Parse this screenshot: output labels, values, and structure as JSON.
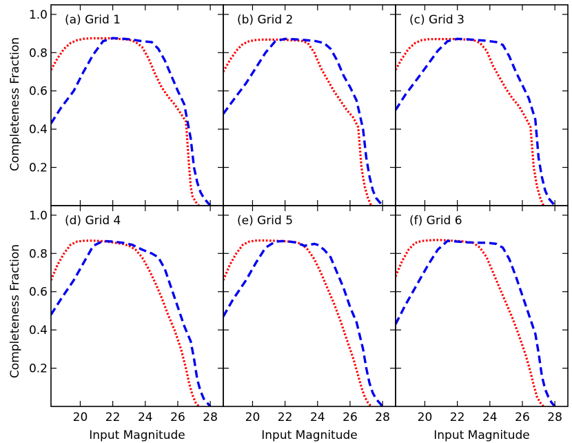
{
  "chart_data": {
    "type": "line",
    "layout": "2x3 grid of panels, shared axes",
    "xlabel": "Input Magnitude",
    "ylabel": "Completeness Fraction",
    "xlim": [
      18.2,
      28.8
    ],
    "ylim": [
      0.0,
      1.05
    ],
    "xticks": [
      20,
      22,
      24,
      26,
      28
    ],
    "yticks": [
      0.2,
      0.4,
      0.6,
      0.8,
      1.0
    ],
    "xtick_labels": [
      "20",
      "22",
      "24",
      "26",
      "28"
    ],
    "ytick_labels": [
      "0.2",
      "0.4",
      "0.6",
      "0.8",
      "1.0"
    ],
    "grid": false,
    "legend": "none",
    "series_styles": [
      {
        "color": "#ff0000",
        "dash": "dotted"
      },
      {
        "color": "#0000ee",
        "dash": "dashed"
      }
    ],
    "panels": [
      {
        "label": "(a) Grid 1",
        "series": [
          {
            "x": [
              18.2,
              18.6,
              19.0,
              19.4,
              19.8,
              20.2,
              20.6,
              21.0,
              21.4,
              21.8,
              22.2,
              22.6,
              23.0,
              23.4,
              23.8,
              24.2,
              24.6,
              25.0,
              25.4,
              25.8,
              26.2,
              26.5,
              26.7,
              26.8,
              26.9,
              27.1,
              27.3
            ],
            "y": [
              0.71,
              0.77,
              0.82,
              0.85,
              0.865,
              0.872,
              0.875,
              0.875,
              0.875,
              0.875,
              0.873,
              0.87,
              0.868,
              0.855,
              0.83,
              0.77,
              0.69,
              0.62,
              0.57,
              0.53,
              0.48,
              0.44,
              0.2,
              0.1,
              0.05,
              0.02,
              0.0
            ]
          },
          {
            "x": [
              18.2,
              18.8,
              19.6,
              20.2,
              20.8,
              21.4,
              22.0,
              22.6,
              23.2,
              23.8,
              24.4,
              24.8,
              25.2,
              25.6,
              26.0,
              26.4,
              26.8,
              27.0,
              27.2,
              27.4,
              27.6,
              27.8,
              28.0
            ],
            "y": [
              0.43,
              0.51,
              0.6,
              0.7,
              0.79,
              0.86,
              0.876,
              0.873,
              0.868,
              0.86,
              0.855,
              0.82,
              0.76,
              0.68,
              0.6,
              0.53,
              0.35,
              0.2,
              0.12,
              0.07,
              0.04,
              0.02,
              0.0
            ]
          }
        ]
      },
      {
        "label": "(b) Grid 2",
        "series": [
          {
            "x": [
              18.2,
              18.6,
              19.0,
              19.4,
              19.8,
              20.2,
              20.6,
              21.0,
              21.4,
              21.8,
              22.2,
              22.6,
              23.0,
              23.4,
              23.8,
              24.2,
              24.6,
              25.0,
              25.4,
              25.8,
              26.2,
              26.5,
              26.7,
              26.9,
              27.1,
              27.3
            ],
            "y": [
              0.7,
              0.76,
              0.81,
              0.845,
              0.86,
              0.866,
              0.868,
              0.868,
              0.868,
              0.868,
              0.866,
              0.864,
              0.862,
              0.85,
              0.8,
              0.72,
              0.66,
              0.6,
              0.55,
              0.5,
              0.46,
              0.41,
              0.2,
              0.1,
              0.04,
              0.0
            ]
          },
          {
            "x": [
              18.2,
              18.8,
              19.6,
              20.2,
              20.8,
              21.4,
              22.0,
              22.6,
              23.2,
              23.8,
              24.4,
              24.8,
              25.2,
              25.6,
              26.0,
              26.4,
              26.8,
              27.0,
              27.2,
              27.4,
              27.6,
              27.8,
              28.0
            ],
            "y": [
              0.48,
              0.55,
              0.64,
              0.72,
              0.8,
              0.86,
              0.872,
              0.87,
              0.866,
              0.862,
              0.85,
              0.82,
              0.76,
              0.68,
              0.62,
              0.55,
              0.4,
              0.25,
              0.15,
              0.08,
              0.04,
              0.02,
              0.0
            ]
          }
        ]
      },
      {
        "label": "(c) Grid 3",
        "series": [
          {
            "x": [
              18.2,
              18.6,
              19.0,
              19.4,
              19.8,
              20.2,
              20.6,
              21.0,
              21.4,
              21.8,
              22.2,
              22.6,
              23.0,
              23.4,
              23.8,
              24.2,
              24.6,
              25.0,
              25.4,
              25.8,
              26.2,
              26.5,
              26.7,
              26.9,
              27.1,
              27.3
            ],
            "y": [
              0.71,
              0.77,
              0.82,
              0.85,
              0.865,
              0.87,
              0.871,
              0.871,
              0.871,
              0.871,
              0.87,
              0.868,
              0.866,
              0.85,
              0.81,
              0.73,
              0.67,
              0.61,
              0.56,
              0.52,
              0.46,
              0.41,
              0.2,
              0.1,
              0.04,
              0.0
            ]
          },
          {
            "x": [
              18.2,
              18.8,
              19.6,
              20.2,
              20.8,
              21.4,
              22.0,
              22.6,
              23.2,
              23.8,
              24.4,
              24.8,
              25.2,
              25.6,
              26.0,
              26.4,
              26.8,
              27.0,
              27.2,
              27.4,
              27.6,
              27.8,
              28.0
            ],
            "y": [
              0.5,
              0.58,
              0.67,
              0.74,
              0.81,
              0.86,
              0.872,
              0.87,
              0.866,
              0.862,
              0.855,
              0.84,
              0.78,
              0.7,
              0.63,
              0.56,
              0.45,
              0.25,
              0.15,
              0.08,
              0.04,
              0.02,
              0.0
            ]
          }
        ]
      },
      {
        "label": "(d) Grid 4",
        "series": [
          {
            "x": [
              18.2,
              18.6,
              19.0,
              19.4,
              19.8,
              20.2,
              20.6,
              21.0,
              21.4,
              21.8,
              22.2,
              22.6,
              23.0,
              23.4,
              23.8,
              24.2,
              24.6,
              25.0,
              25.4,
              25.8,
              26.2,
              26.5,
              26.7,
              26.9,
              27.1,
              27.3
            ],
            "y": [
              0.66,
              0.74,
              0.8,
              0.845,
              0.862,
              0.866,
              0.867,
              0.866,
              0.864,
              0.86,
              0.855,
              0.85,
              0.84,
              0.82,
              0.78,
              0.72,
              0.65,
              0.57,
              0.48,
              0.4,
              0.3,
              0.2,
              0.12,
              0.06,
              0.02,
              0.0
            ]
          },
          {
            "x": [
              18.2,
              18.8,
              19.6,
              20.2,
              20.8,
              21.4,
              22.0,
              22.6,
              23.2,
              23.8,
              24.4,
              24.8,
              25.2,
              25.6,
              26.0,
              26.4,
              26.8,
              27.0,
              27.2,
              27.4,
              27.6,
              27.8,
              28.0
            ],
            "y": [
              0.48,
              0.56,
              0.66,
              0.75,
              0.84,
              0.865,
              0.862,
              0.856,
              0.845,
              0.82,
              0.8,
              0.78,
              0.72,
              0.62,
              0.52,
              0.42,
              0.34,
              0.25,
              0.14,
              0.08,
              0.04,
              0.02,
              0.0
            ]
          }
        ]
      },
      {
        "label": "(e) Grid 5",
        "series": [
          {
            "x": [
              18.2,
              18.6,
              19.0,
              19.4,
              19.8,
              20.2,
              20.6,
              21.0,
              21.4,
              21.8,
              22.2,
              22.6,
              23.0,
              23.4,
              23.8,
              24.2,
              24.6,
              25.0,
              25.4,
              25.8,
              26.2,
              26.5,
              26.7,
              26.9,
              27.1,
              27.3
            ],
            "y": [
              0.66,
              0.74,
              0.8,
              0.845,
              0.862,
              0.867,
              0.868,
              0.867,
              0.866,
              0.865,
              0.862,
              0.86,
              0.85,
              0.82,
              0.77,
              0.7,
              0.62,
              0.54,
              0.45,
              0.35,
              0.25,
              0.16,
              0.1,
              0.05,
              0.02,
              0.0
            ]
          },
          {
            "x": [
              18.2,
              18.8,
              19.6,
              20.2,
              20.8,
              21.4,
              22.0,
              22.6,
              23.2,
              23.8,
              24.0,
              24.4,
              24.8,
              25.2,
              25.6,
              26.0,
              26.4,
              26.8,
              27.0,
              27.2,
              27.4,
              27.6,
              27.8,
              28.0
            ],
            "y": [
              0.47,
              0.56,
              0.66,
              0.75,
              0.83,
              0.862,
              0.865,
              0.858,
              0.84,
              0.85,
              0.845,
              0.82,
              0.78,
              0.7,
              0.62,
              0.52,
              0.44,
              0.3,
              0.2,
              0.12,
              0.07,
              0.04,
              0.02,
              0.0
            ]
          }
        ]
      },
      {
        "label": "(f) Grid 6",
        "series": [
          {
            "x": [
              18.2,
              18.6,
              19.0,
              19.4,
              19.8,
              20.2,
              20.6,
              21.0,
              21.4,
              21.8,
              22.2,
              22.6,
              23.0,
              23.4,
              23.8,
              24.2,
              24.6,
              25.0,
              25.4,
              25.8,
              26.2,
              26.5,
              26.7,
              26.9,
              27.1,
              27.3
            ],
            "y": [
              0.68,
              0.76,
              0.82,
              0.855,
              0.865,
              0.868,
              0.87,
              0.87,
              0.868,
              0.866,
              0.864,
              0.86,
              0.855,
              0.83,
              0.78,
              0.7,
              0.62,
              0.54,
              0.46,
              0.37,
              0.27,
              0.18,
              0.11,
              0.05,
              0.02,
              0.0
            ]
          },
          {
            "x": [
              18.2,
              18.8,
              19.6,
              20.2,
              20.8,
              21.4,
              22.0,
              22.6,
              23.2,
              23.8,
              24.4,
              24.8,
              25.2,
              25.6,
              26.0,
              26.4,
              26.8,
              27.0,
              27.2,
              27.4,
              27.6,
              27.8,
              28.0
            ],
            "y": [
              0.43,
              0.53,
              0.65,
              0.74,
              0.82,
              0.866,
              0.862,
              0.858,
              0.856,
              0.856,
              0.85,
              0.83,
              0.77,
              0.68,
              0.58,
              0.48,
              0.38,
              0.28,
              0.16,
              0.09,
              0.05,
              0.02,
              0.0
            ]
          }
        ]
      }
    ]
  }
}
